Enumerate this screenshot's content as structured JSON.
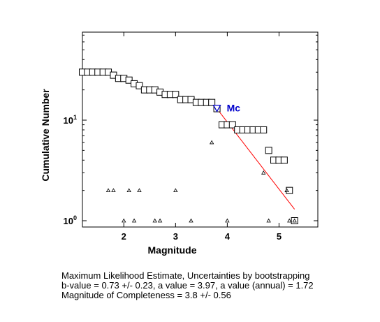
{
  "chart_data": {
    "type": "scatter",
    "xlabel": "Magnitude",
    "ylabel": "Cumulative Number",
    "xlim": [
      1.2,
      5.75
    ],
    "ylim": [
      0.85,
      80
    ],
    "yscale": "log",
    "x_ticks": [
      2,
      3,
      4,
      5
    ],
    "x_tick_labels": [
      "2",
      "3",
      "4",
      "5"
    ],
    "y_ticks": [
      1,
      10
    ],
    "y_tick_labels": [
      [
        "10",
        "0"
      ],
      [
        "10",
        "1"
      ]
    ],
    "grid": false,
    "series": [
      {
        "marker": "square",
        "x": [
          1.2,
          1.3,
          1.4,
          1.5,
          1.6,
          1.7,
          1.8,
          1.9,
          2.0,
          2.1,
          2.2,
          2.3,
          2.4,
          2.5,
          2.6,
          2.7,
          2.8,
          2.9,
          3.0,
          3.1,
          3.2,
          3.3,
          3.4,
          3.5,
          3.6,
          3.7,
          3.8,
          3.9,
          4.0,
          4.1,
          4.2,
          4.3,
          4.4,
          4.5,
          4.6,
          4.7,
          4.8,
          4.9,
          5.0,
          5.1,
          5.2,
          5.3
        ],
        "y": [
          30,
          30,
          30,
          30,
          30,
          30,
          28,
          26,
          26,
          25,
          23,
          22,
          20,
          20,
          20,
          19,
          18,
          18,
          18,
          16,
          16,
          16,
          15,
          15,
          15,
          15,
          13,
          9,
          9,
          9,
          8,
          8,
          8,
          8,
          8,
          8,
          5,
          4,
          4,
          4,
          2,
          1
        ]
      },
      {
        "marker": "triangle",
        "x": [
          1.7,
          1.8,
          2.0,
          2.1,
          2.2,
          2.3,
          2.6,
          2.7,
          3.0,
          3.3,
          3.7,
          4.0,
          4.7,
          4.8,
          5.15,
          5.2,
          5.3
        ],
        "y": [
          2,
          2,
          1,
          2,
          1,
          2,
          1,
          1,
          2,
          1,
          6,
          1,
          3,
          1,
          2,
          1,
          1
        ]
      }
    ],
    "fit_line": {
      "x": [
        3.8,
        5.3
      ],
      "y": [
        13,
        1.3
      ],
      "color": "#ff0000"
    },
    "mc_marker": {
      "x": 3.8,
      "y": 13,
      "label": "Mc",
      "color": "#0000cc"
    }
  },
  "caption": {
    "line1": "Maximum Likelihood Estimate, Uncertainties by bootstrapping",
    "line2": "b-value = 0.73 +/- 0.23,  a value = 3.97,  a value (annual) = 1.72",
    "line3": "Magnitude of Completeness = 3.8 +/- 0.56"
  }
}
